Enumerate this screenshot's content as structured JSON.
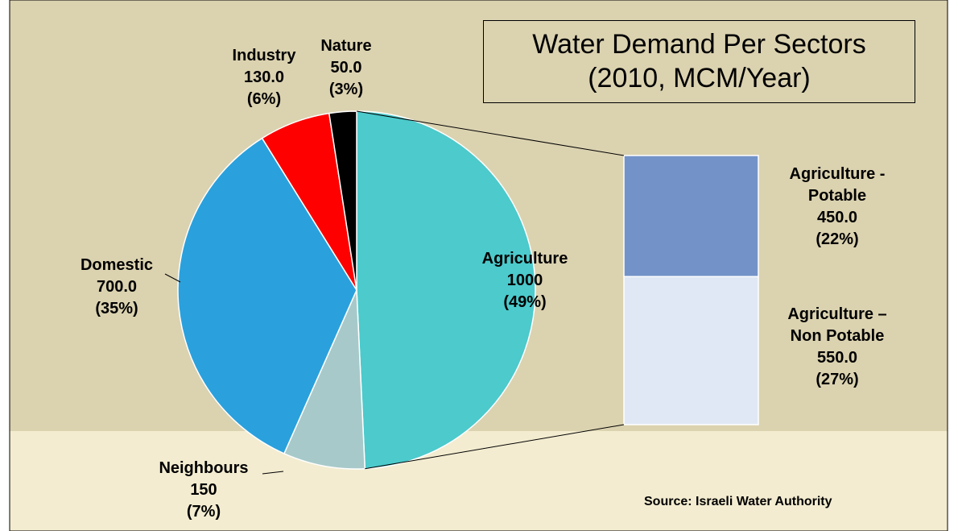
{
  "chart_data": {
    "type": "pie",
    "title": "Water Demand Per Sectors",
    "subtitle": "(2010, MCM/Year)",
    "categories": [
      "Agriculture",
      "Neighbours",
      "Domestic",
      "Industry",
      "Nature"
    ],
    "values": [
      1000,
      150,
      700,
      130,
      50
    ],
    "value_labels": [
      "1000",
      "150",
      "700.0",
      "130.0",
      "50.0"
    ],
    "percent_labels": [
      "(49%)",
      "(7%)",
      "(35%)",
      "(6%)",
      "(3%)"
    ],
    "colors": [
      "#4ccacc",
      "#a8c9c9",
      "#2aa1dd",
      "#ff0000",
      "#000000"
    ],
    "breakdown": {
      "categories": [
        "Agriculture - Potable",
        "Agriculture – Non Potable"
      ],
      "values": [
        450,
        550
      ],
      "value_labels": [
        "450.0",
        "550.0"
      ],
      "percent_labels": [
        "(22%)",
        "(27%)"
      ],
      "colors": [
        "#7393c8",
        "#dfe8f4"
      ]
    },
    "source": "Source: Israeli Water Authority"
  }
}
